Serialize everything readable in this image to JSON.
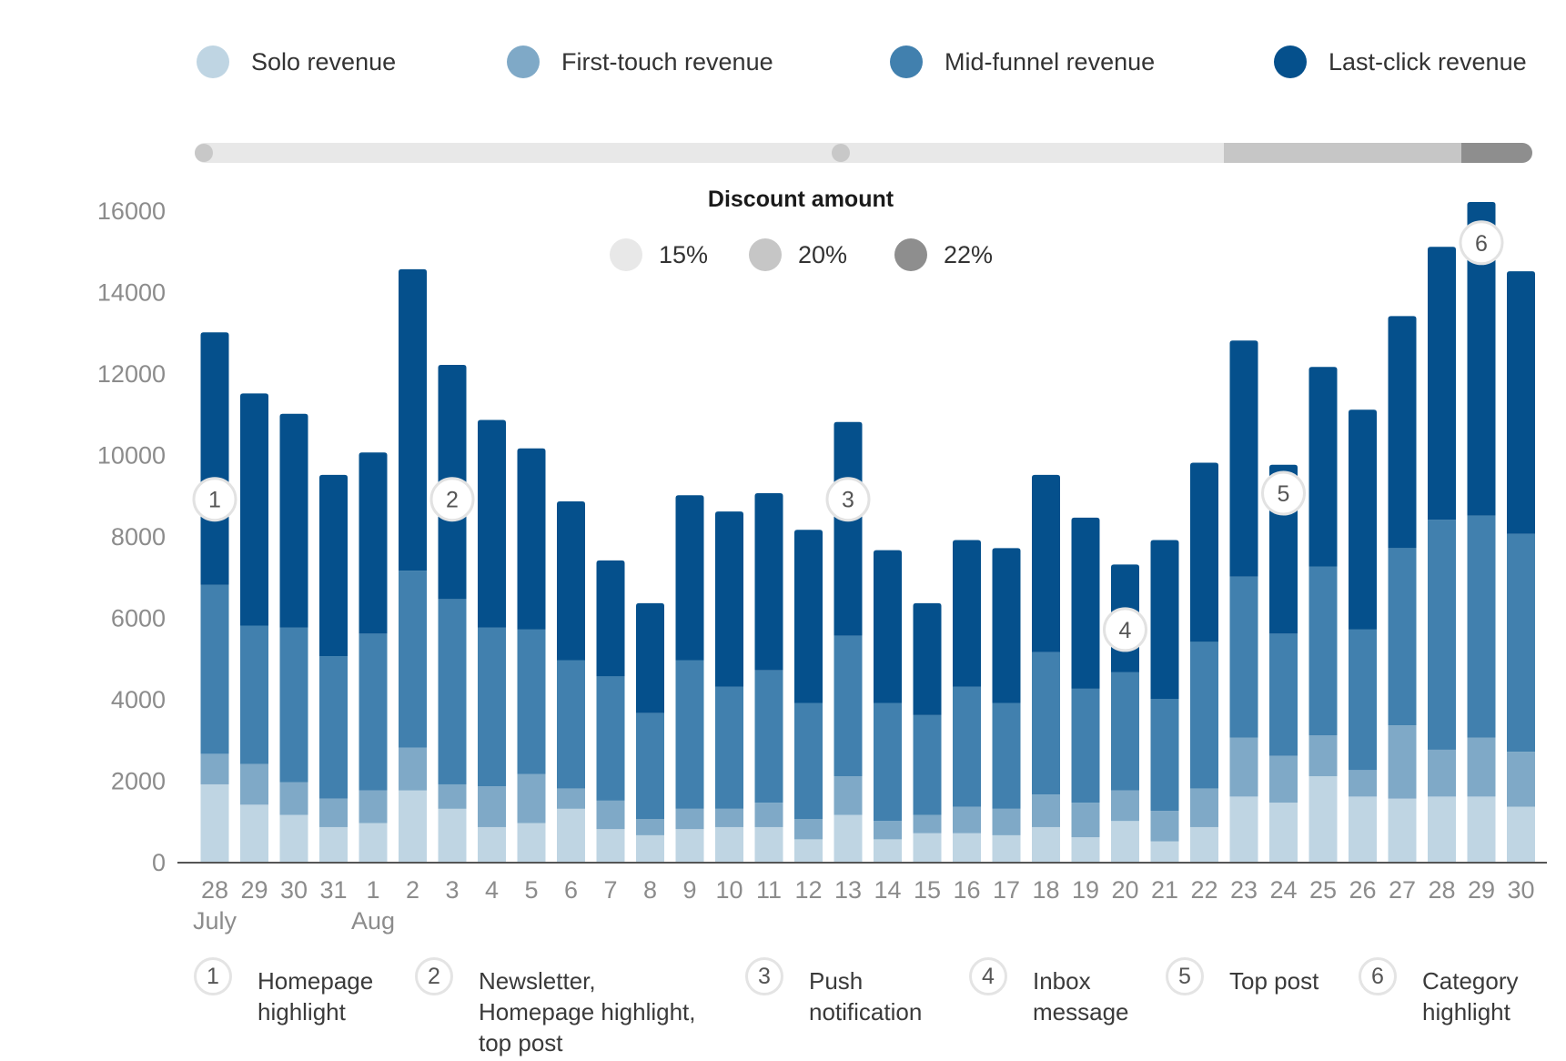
{
  "legend": [
    {
      "label": "Solo revenue",
      "color": "#bfd5e3"
    },
    {
      "label": "First-touch revenue",
      "color": "#7fa9c7"
    },
    {
      "label": "Mid-funnel revenue",
      "color": "#4180ae"
    },
    {
      "label": "Last-click revenue",
      "color": "#05508c"
    }
  ],
  "discount": {
    "title": "Discount amount",
    "items": [
      {
        "label": "15%",
        "color": "#e8e8e8"
      },
      {
        "label": "20%",
        "color": "#c6c6c6"
      },
      {
        "label": "22%",
        "color": "#8e8e8e"
      }
    ]
  },
  "annotations": [
    {
      "num": "1",
      "lines": [
        "Homepage",
        "highlight"
      ]
    },
    {
      "num": "2",
      "lines": [
        "Newsletter,",
        "Homepage highlight,",
        "top post"
      ]
    },
    {
      "num": "3",
      "lines": [
        "Push",
        "notification"
      ]
    },
    {
      "num": "4",
      "lines": [
        "Inbox",
        "message"
      ]
    },
    {
      "num": "5",
      "lines": [
        "Top post"
      ]
    },
    {
      "num": "6",
      "lines": [
        "Category",
        "highlight"
      ]
    }
  ],
  "chart_data": {
    "type": "bar",
    "stacked": true,
    "ylim": [
      0,
      16000
    ],
    "yticks": [
      0,
      2000,
      4000,
      6000,
      8000,
      10000,
      12000,
      14000,
      16000
    ],
    "categories": [
      "28",
      "29",
      "30",
      "31",
      "1",
      "2",
      "3",
      "4",
      "5",
      "6",
      "7",
      "8",
      "9",
      "10",
      "11",
      "12",
      "13",
      "14",
      "15",
      "16",
      "17",
      "18",
      "19",
      "20",
      "21",
      "22",
      "23",
      "24",
      "25",
      "26",
      "27",
      "28",
      "29",
      "30"
    ],
    "month_labels": [
      {
        "index": 0,
        "label": "July"
      },
      {
        "index": 4,
        "label": "Aug"
      }
    ],
    "series": [
      {
        "name": "Solo revenue",
        "values": [
          1900,
          1400,
          1150,
          850,
          950,
          1750,
          1300,
          850,
          950,
          1300,
          800,
          650,
          800,
          850,
          850,
          550,
          1150,
          550,
          700,
          700,
          650,
          850,
          600,
          1000,
          500,
          850,
          1600,
          1450,
          2100,
          1600,
          1550,
          1600,
          1600,
          1350
        ]
      },
      {
        "name": "First-touch revenue",
        "values": [
          750,
          1000,
          800,
          700,
          800,
          1050,
          600,
          1000,
          1200,
          500,
          700,
          400,
          500,
          450,
          600,
          500,
          950,
          450,
          450,
          650,
          650,
          800,
          850,
          750,
          750,
          950,
          1450,
          1150,
          1000,
          650,
          1800,
          1150,
          1450,
          1350
        ]
      },
      {
        "name": "Mid-funnel revenue",
        "values": [
          4150,
          3400,
          3800,
          3500,
          3850,
          4350,
          4550,
          3900,
          3550,
          3150,
          3050,
          2600,
          3650,
          3000,
          3250,
          2850,
          3450,
          2900,
          2450,
          2950,
          2600,
          3500,
          2800,
          2900,
          2750,
          3600,
          3950,
          3000,
          4150,
          3450,
          4350,
          5650,
          5450,
          5350
        ]
      },
      {
        "name": "Last-click revenue",
        "values": [
          6200,
          5700,
          5250,
          4450,
          4450,
          7400,
          5750,
          5100,
          4450,
          3900,
          2850,
          2700,
          4050,
          4300,
          4350,
          4250,
          5250,
          3750,
          2750,
          3600,
          3800,
          4350,
          4200,
          2650,
          3900,
          4400,
          5800,
          4150,
          4900,
          5400,
          5700,
          6700,
          7700,
          6450
        ]
      }
    ],
    "discount_strip": [
      {
        "from_index": 0,
        "to_index": 26,
        "level": "15%"
      },
      {
        "from_index": 26,
        "to_index": 32,
        "level": "20%"
      },
      {
        "from_index": 32,
        "to_index": 33,
        "level": "22%"
      }
    ],
    "markers": [
      {
        "num": "1",
        "index": 0,
        "value": 8900
      },
      {
        "num": "2",
        "index": 6,
        "value": 8900
      },
      {
        "num": "3",
        "index": 16,
        "value": 8900
      },
      {
        "num": "4",
        "index": 23,
        "value": 5700
      },
      {
        "num": "5",
        "index": 27,
        "value": 9050
      },
      {
        "num": "6",
        "index": 32,
        "value": 15200
      }
    ]
  }
}
